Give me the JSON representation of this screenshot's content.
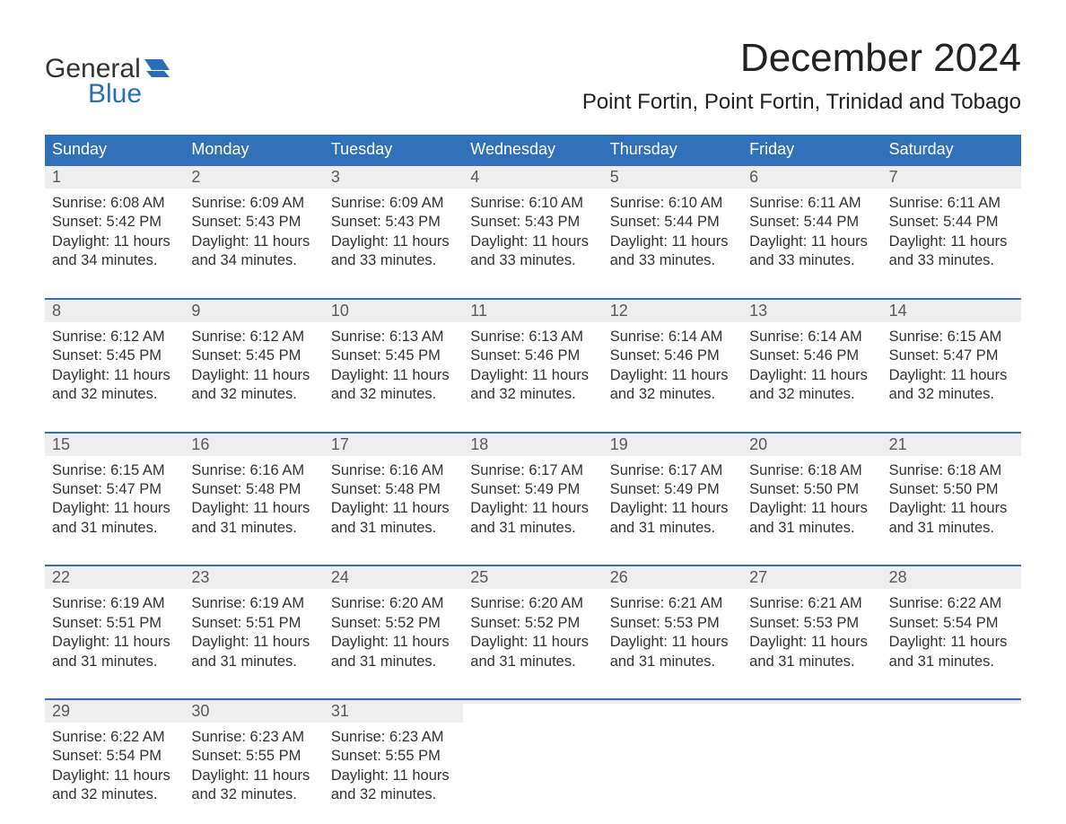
{
  "logo": {
    "word1": "General",
    "word2": "Blue",
    "flag_color": "#2a6db8"
  },
  "title": "December 2024",
  "location": "Point Fortin, Point Fortin, Trinidad and Tobago",
  "colors": {
    "header_bg": "#3071b9",
    "header_text": "#ffffff",
    "daynum_bg": "#eeeeee",
    "daynum_text": "#5a5a5a",
    "body_text": "#333333",
    "week_border": "#3071b9",
    "page_bg": "#ffffff"
  },
  "typography": {
    "title_fontsize": 44,
    "location_fontsize": 24,
    "dow_fontsize": 18,
    "daynum_fontsize": 18,
    "body_fontsize": 16.5
  },
  "days_of_week": [
    "Sunday",
    "Monday",
    "Tuesday",
    "Wednesday",
    "Thursday",
    "Friday",
    "Saturday"
  ],
  "labels": {
    "sunrise": "Sunrise:",
    "sunset": "Sunset:",
    "daylight": "Daylight:"
  },
  "weeks": [
    [
      {
        "num": "1",
        "sunrise": "6:08 AM",
        "sunset": "5:42 PM",
        "daylight": "11 hours and 34 minutes."
      },
      {
        "num": "2",
        "sunrise": "6:09 AM",
        "sunset": "5:43 PM",
        "daylight": "11 hours and 34 minutes."
      },
      {
        "num": "3",
        "sunrise": "6:09 AM",
        "sunset": "5:43 PM",
        "daylight": "11 hours and 33 minutes."
      },
      {
        "num": "4",
        "sunrise": "6:10 AM",
        "sunset": "5:43 PM",
        "daylight": "11 hours and 33 minutes."
      },
      {
        "num": "5",
        "sunrise": "6:10 AM",
        "sunset": "5:44 PM",
        "daylight": "11 hours and 33 minutes."
      },
      {
        "num": "6",
        "sunrise": "6:11 AM",
        "sunset": "5:44 PM",
        "daylight": "11 hours and 33 minutes."
      },
      {
        "num": "7",
        "sunrise": "6:11 AM",
        "sunset": "5:44 PM",
        "daylight": "11 hours and 33 minutes."
      }
    ],
    [
      {
        "num": "8",
        "sunrise": "6:12 AM",
        "sunset": "5:45 PM",
        "daylight": "11 hours and 32 minutes."
      },
      {
        "num": "9",
        "sunrise": "6:12 AM",
        "sunset": "5:45 PM",
        "daylight": "11 hours and 32 minutes."
      },
      {
        "num": "10",
        "sunrise": "6:13 AM",
        "sunset": "5:45 PM",
        "daylight": "11 hours and 32 minutes."
      },
      {
        "num": "11",
        "sunrise": "6:13 AM",
        "sunset": "5:46 PM",
        "daylight": "11 hours and 32 minutes."
      },
      {
        "num": "12",
        "sunrise": "6:14 AM",
        "sunset": "5:46 PM",
        "daylight": "11 hours and 32 minutes."
      },
      {
        "num": "13",
        "sunrise": "6:14 AM",
        "sunset": "5:46 PM",
        "daylight": "11 hours and 32 minutes."
      },
      {
        "num": "14",
        "sunrise": "6:15 AM",
        "sunset": "5:47 PM",
        "daylight": "11 hours and 32 minutes."
      }
    ],
    [
      {
        "num": "15",
        "sunrise": "6:15 AM",
        "sunset": "5:47 PM",
        "daylight": "11 hours and 31 minutes."
      },
      {
        "num": "16",
        "sunrise": "6:16 AM",
        "sunset": "5:48 PM",
        "daylight": "11 hours and 31 minutes."
      },
      {
        "num": "17",
        "sunrise": "6:16 AM",
        "sunset": "5:48 PM",
        "daylight": "11 hours and 31 minutes."
      },
      {
        "num": "18",
        "sunrise": "6:17 AM",
        "sunset": "5:49 PM",
        "daylight": "11 hours and 31 minutes."
      },
      {
        "num": "19",
        "sunrise": "6:17 AM",
        "sunset": "5:49 PM",
        "daylight": "11 hours and 31 minutes."
      },
      {
        "num": "20",
        "sunrise": "6:18 AM",
        "sunset": "5:50 PM",
        "daylight": "11 hours and 31 minutes."
      },
      {
        "num": "21",
        "sunrise": "6:18 AM",
        "sunset": "5:50 PM",
        "daylight": "11 hours and 31 minutes."
      }
    ],
    [
      {
        "num": "22",
        "sunrise": "6:19 AM",
        "sunset": "5:51 PM",
        "daylight": "11 hours and 31 minutes."
      },
      {
        "num": "23",
        "sunrise": "6:19 AM",
        "sunset": "5:51 PM",
        "daylight": "11 hours and 31 minutes."
      },
      {
        "num": "24",
        "sunrise": "6:20 AM",
        "sunset": "5:52 PM",
        "daylight": "11 hours and 31 minutes."
      },
      {
        "num": "25",
        "sunrise": "6:20 AM",
        "sunset": "5:52 PM",
        "daylight": "11 hours and 31 minutes."
      },
      {
        "num": "26",
        "sunrise": "6:21 AM",
        "sunset": "5:53 PM",
        "daylight": "11 hours and 31 minutes."
      },
      {
        "num": "27",
        "sunrise": "6:21 AM",
        "sunset": "5:53 PM",
        "daylight": "11 hours and 31 minutes."
      },
      {
        "num": "28",
        "sunrise": "6:22 AM",
        "sunset": "5:54 PM",
        "daylight": "11 hours and 31 minutes."
      }
    ],
    [
      {
        "num": "29",
        "sunrise": "6:22 AM",
        "sunset": "5:54 PM",
        "daylight": "11 hours and 32 minutes."
      },
      {
        "num": "30",
        "sunrise": "6:23 AM",
        "sunset": "5:55 PM",
        "daylight": "11 hours and 32 minutes."
      },
      {
        "num": "31",
        "sunrise": "6:23 AM",
        "sunset": "5:55 PM",
        "daylight": "11 hours and 32 minutes."
      },
      null,
      null,
      null,
      null
    ]
  ]
}
